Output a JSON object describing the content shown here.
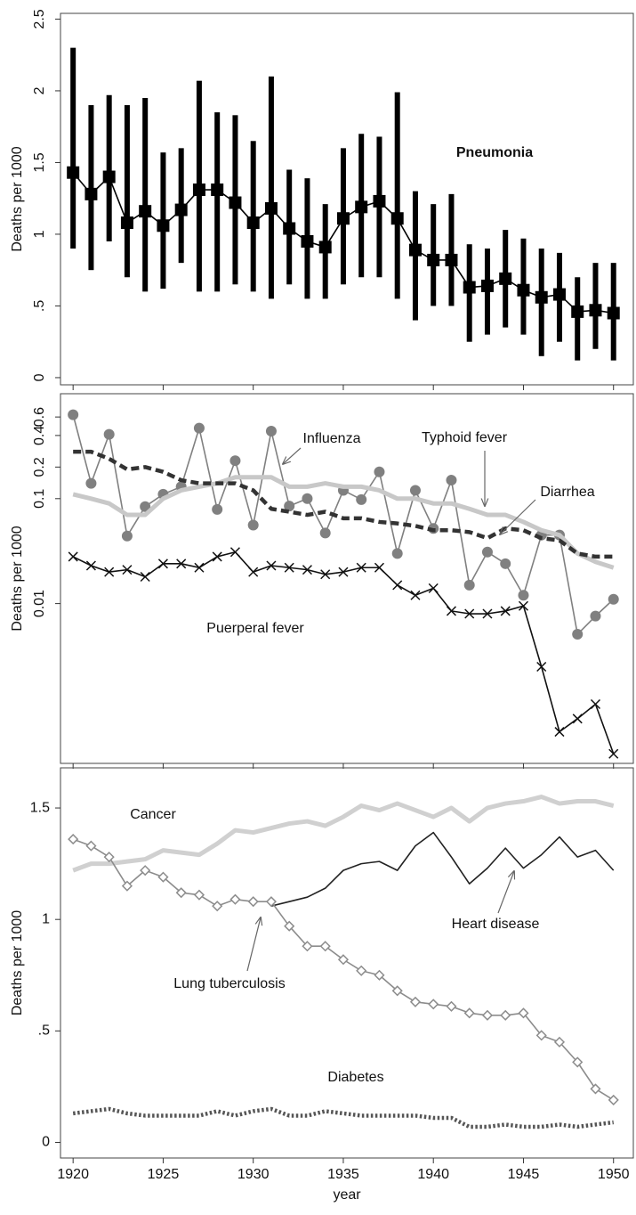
{
  "chart_data": [
    {
      "type": "line",
      "ylabel": "Deaths per 1000",
      "x": [
        1920,
        1921,
        1922,
        1923,
        1924,
        1925,
        1926,
        1927,
        1928,
        1929,
        1930,
        1931,
        1932,
        1933,
        1934,
        1935,
        1936,
        1937,
        1938,
        1939,
        1940,
        1941,
        1942,
        1943,
        1944,
        1945,
        1946,
        1947,
        1948,
        1949,
        1950
      ],
      "xlim": [
        1919.3,
        1951.1
      ],
      "xticks": [
        1920,
        1925,
        1930,
        1935,
        1940,
        1945,
        1950
      ],
      "ylim": [
        -0.05,
        2.54
      ],
      "yticks": [
        0,
        {
          "value": 0.5,
          "label": ".5"
        },
        1,
        1.5,
        2,
        2.5
      ],
      "series": [
        {
          "name": "Pneumonia",
          "color": "#000000",
          "marker": "square",
          "dash": "solid",
          "line": "thin",
          "values": [
            1.43,
            1.28,
            1.4,
            1.08,
            1.16,
            1.06,
            1.17,
            1.31,
            1.31,
            1.22,
            1.08,
            1.18,
            1.04,
            0.95,
            0.91,
            1.11,
            1.19,
            1.23,
            1.11,
            0.89,
            0.82,
            0.82,
            0.63,
            0.64,
            0.69,
            0.61,
            0.56,
            0.58,
            0.46,
            0.47,
            0.45
          ],
          "low": [
            0.9,
            0.75,
            0.95,
            0.7,
            0.6,
            0.62,
            0.8,
            0.6,
            0.6,
            0.65,
            0.6,
            0.55,
            0.65,
            0.55,
            0.55,
            0.65,
            0.7,
            0.7,
            0.55,
            0.4,
            0.5,
            0.5,
            0.25,
            0.3,
            0.35,
            0.3,
            0.15,
            0.25,
            0.12,
            0.2,
            0.12
          ],
          "high": [
            2.3,
            1.9,
            1.97,
            1.9,
            1.95,
            1.57,
            1.6,
            2.07,
            1.85,
            1.83,
            1.65,
            2.1,
            1.45,
            1.39,
            1.21,
            1.6,
            1.7,
            1.68,
            1.99,
            1.3,
            1.21,
            1.28,
            0.93,
            0.9,
            1.03,
            0.97,
            0.9,
            0.87,
            0.7,
            0.8,
            0.8
          ]
        }
      ]
    },
    {
      "type": "line",
      "ylabel": "Deaths per 1000",
      "log": true,
      "x": [
        1920,
        1921,
        1922,
        1923,
        1924,
        1925,
        1926,
        1927,
        1928,
        1929,
        1930,
        1931,
        1932,
        1933,
        1934,
        1935,
        1936,
        1937,
        1938,
        1939,
        1940,
        1941,
        1942,
        1943,
        1944,
        1945,
        1946,
        1947,
        1948,
        1949,
        1950
      ],
      "xlim": [
        1919.3,
        1951.1
      ],
      "xticks": [
        1920,
        1925,
        1930,
        1935,
        1940,
        1945,
        1950
      ],
      "ylim": [
        0.0003,
        1
      ],
      "yticks": [
        0.01,
        0.1,
        0.2,
        0.4,
        0.6
      ],
      "series": [
        {
          "name": "Influenza",
          "color": "#808080",
          "marker": "circle",
          "dash": "solid",
          "line": "thin",
          "values": [
            0.63,
            0.14,
            0.41,
            0.044,
            0.084,
            0.11,
            0.13,
            0.47,
            0.079,
            0.23,
            0.056,
            0.44,
            0.085,
            0.1,
            0.047,
            0.12,
            0.098,
            0.18,
            0.03,
            0.12,
            0.052,
            0.15,
            0.015,
            0.031,
            0.024,
            0.012,
            0.045,
            0.045,
            0.0051,
            0.0076,
            0.011
          ]
        },
        {
          "name": "Typhoid fever",
          "color": "#c8c8c8",
          "marker": "none",
          "dash": "solid",
          "line": "thick",
          "values": [
            0.11,
            0.1,
            0.09,
            0.07,
            0.07,
            0.1,
            0.12,
            0.13,
            0.14,
            0.16,
            0.16,
            0.16,
            0.13,
            0.13,
            0.14,
            0.13,
            0.13,
            0.12,
            0.1,
            0.1,
            0.09,
            0.09,
            0.08,
            0.07,
            0.07,
            0.06,
            0.05,
            0.045,
            0.03,
            0.025,
            0.022
          ]
        },
        {
          "name": "Diarrhea",
          "color": "#333333",
          "marker": "none",
          "dash": "dashed",
          "line": "thick",
          "values": [
            0.28,
            0.28,
            0.24,
            0.19,
            0.2,
            0.18,
            0.15,
            0.14,
            0.14,
            0.14,
            0.12,
            0.08,
            0.075,
            0.07,
            0.075,
            0.065,
            0.065,
            0.06,
            0.058,
            0.055,
            0.05,
            0.05,
            0.048,
            0.042,
            0.052,
            0.05,
            0.042,
            0.04,
            0.03,
            0.028,
            0.028
          ]
        },
        {
          "name": "Puerperal fever",
          "color": "#111111",
          "marker": "x",
          "dash": "solid",
          "line": "thin",
          "values": [
            0.028,
            0.023,
            0.02,
            0.021,
            0.018,
            0.024,
            0.024,
            0.022,
            0.028,
            0.031,
            0.02,
            0.023,
            0.022,
            0.021,
            0.019,
            0.02,
            0.022,
            0.022,
            0.015,
            0.012,
            0.014,
            0.0085,
            0.008,
            0.008,
            0.0085,
            0.0095,
            0.0025,
            0.0006,
            0.0008,
            0.0011,
            0.00037
          ]
        }
      ]
    },
    {
      "type": "line",
      "ylabel": "Deaths per 1000",
      "xlabel": "year",
      "x": [
        1920,
        1921,
        1922,
        1923,
        1924,
        1925,
        1926,
        1927,
        1928,
        1929,
        1930,
        1931,
        1932,
        1933,
        1934,
        1935,
        1936,
        1937,
        1938,
        1939,
        1940,
        1941,
        1942,
        1943,
        1944,
        1945,
        1946,
        1947,
        1948,
        1949,
        1950
      ],
      "xlim": [
        1919.3,
        1951.1
      ],
      "xticks": [
        1920,
        1925,
        1930,
        1935,
        1940,
        1945,
        1950
      ],
      "ylim": [
        -0.07,
        1.68
      ],
      "yticks": [
        0,
        {
          "value": 0.5,
          "label": ".5"
        },
        1,
        1.5
      ],
      "series": [
        {
          "name": "Cancer",
          "color": "#d0d0d0",
          "marker": "none",
          "dash": "solid",
          "line": "thick",
          "values": [
            1.22,
            1.25,
            1.25,
            1.26,
            1.27,
            1.31,
            1.3,
            1.29,
            1.34,
            1.4,
            1.39,
            1.41,
            1.43,
            1.44,
            1.42,
            1.46,
            1.51,
            1.49,
            1.52,
            1.49,
            1.46,
            1.5,
            1.44,
            1.5,
            1.52,
            1.53,
            1.55,
            1.52,
            1.53,
            1.53,
            1.51
          ]
        },
        {
          "name": "Heart disease",
          "color": "#222222",
          "marker": "none",
          "dash": "solid",
          "line": "thin",
          "values": [
            null,
            null,
            null,
            null,
            null,
            null,
            null,
            null,
            null,
            null,
            null,
            1.06,
            1.08,
            1.1,
            1.14,
            1.22,
            1.25,
            1.26,
            1.22,
            1.33,
            1.39,
            1.28,
            1.16,
            1.23,
            1.32,
            1.23,
            1.29,
            1.37,
            1.28,
            1.31,
            1.22
          ]
        },
        {
          "name": "Lung tuberculosis",
          "color": "#8c8c8c",
          "marker": "diamond",
          "dash": "solid",
          "line": "thin",
          "values": [
            1.36,
            1.33,
            1.28,
            1.15,
            1.22,
            1.19,
            1.12,
            1.11,
            1.06,
            1.09,
            1.08,
            1.08,
            0.97,
            0.88,
            0.88,
            0.82,
            0.77,
            0.75,
            0.68,
            0.63,
            0.62,
            0.61,
            0.58,
            0.57,
            0.57,
            0.58,
            0.48,
            0.45,
            0.36,
            0.24,
            0.19
          ]
        },
        {
          "name": "Diabetes",
          "color": "#555555",
          "marker": "none",
          "dash": "dotted",
          "line": "thick",
          "values": [
            0.13,
            0.14,
            0.15,
            0.13,
            0.12,
            0.12,
            0.12,
            0.12,
            0.14,
            0.12,
            0.14,
            0.15,
            0.12,
            0.12,
            0.14,
            0.13,
            0.12,
            0.12,
            0.12,
            0.12,
            0.11,
            0.11,
            0.07,
            0.07,
            0.08,
            0.07,
            0.07,
            0.08,
            0.07,
            0.08,
            0.09
          ]
        }
      ]
    }
  ]
}
